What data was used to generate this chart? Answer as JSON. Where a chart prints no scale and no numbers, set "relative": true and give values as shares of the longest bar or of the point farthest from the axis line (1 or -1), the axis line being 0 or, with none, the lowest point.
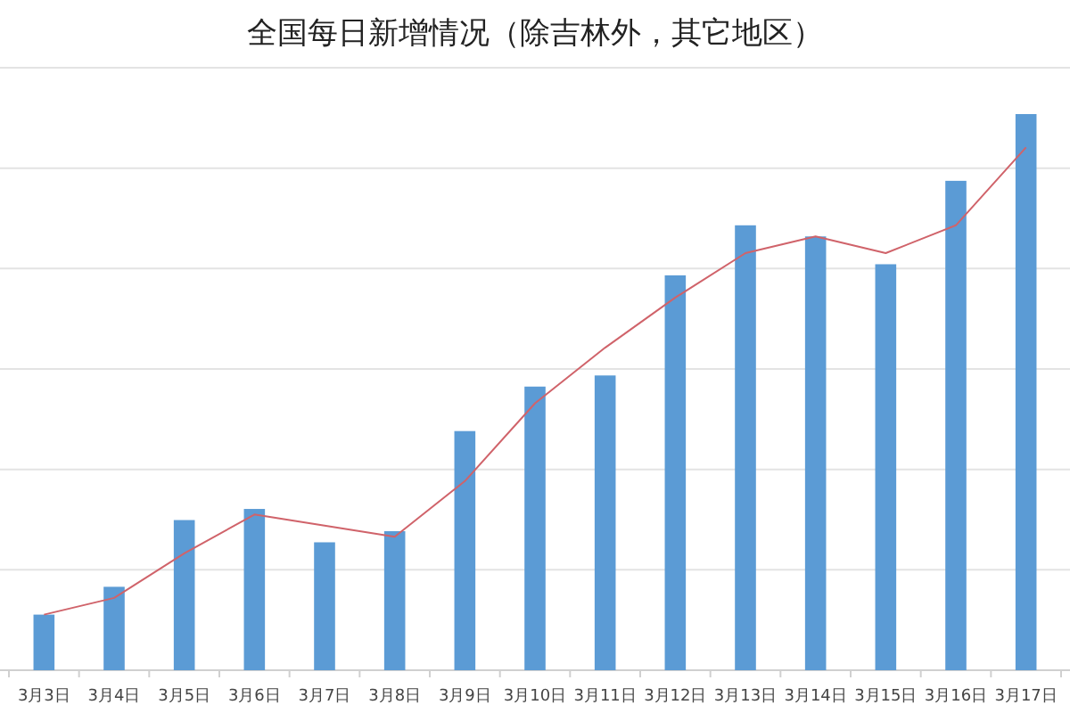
{
  "chart_data": {
    "type": "bar",
    "title": "全国每日新增情况（除吉林外，其它地区）",
    "relative": true,
    "grid": "y",
    "categories": [
      "3月3日",
      "3月4日",
      "3月5日",
      "3月6日",
      "3月7日",
      "3月8日",
      "3月9日",
      "3月10日",
      "3月11日",
      "3月12日",
      "3月13日",
      "3月14日",
      "3月15日",
      "3月16日",
      "3月17日"
    ],
    "series": [
      {
        "color": "#5b9bd5",
        "values": [
          0.1,
          0.15,
          0.27,
          0.29,
          0.23,
          0.25,
          0.43,
          0.51,
          0.53,
          0.71,
          0.8,
          0.78,
          0.73,
          0.88,
          1.0
        ]
      },
      {
        "type": "line",
        "color": "#d0636a",
        "values": [
          0.1,
          0.13,
          0.21,
          0.28,
          0.26,
          0.24,
          0.34,
          0.48,
          0.58,
          0.67,
          0.75,
          0.78,
          0.75,
          0.8,
          0.94
        ]
      }
    ]
  }
}
